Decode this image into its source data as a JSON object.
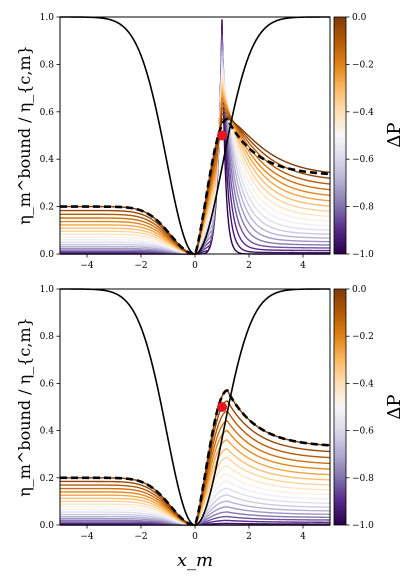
{
  "figure": {
    "ylabel": "η_m^bound / η_{c,m}",
    "xlabel": "x_m",
    "colorbar_label": "ΔP",
    "colorbar_ticks": [
      "0.0",
      "−0.2",
      "−0.4",
      "−0.6",
      "−0.8",
      "−1.0"
    ],
    "x_ticks": [
      "−4",
      "−2",
      "0",
      "2",
      "4"
    ],
    "y_ticks": [
      "0.0",
      "0.2",
      "0.4",
      "0.6",
      "0.8",
      "1.0"
    ]
  },
  "chart_data": [
    {
      "type": "line",
      "panel": "top",
      "xlim": [
        -5,
        5
      ],
      "ylim": [
        0,
        1
      ],
      "colormap": "PuOr (purple at ΔP = −1.0, orange at ΔP = 0.0)",
      "colorbar_range": [
        -1.0,
        0.0
      ],
      "black_solid_curve": {
        "x": [
          -5,
          -4,
          -3,
          -2,
          -1,
          -0.5,
          0,
          0.5,
          1,
          2,
          3,
          4,
          5
        ],
        "y": [
          0.96,
          0.93,
          0.87,
          0.73,
          0.45,
          0.2,
          0.0,
          0.2,
          0.5,
          0.8,
          0.91,
          0.94,
          0.96
        ]
      },
      "black_dashed_curve": {
        "x": [
          -5,
          -3,
          -1,
          0,
          0.5,
          1,
          1.2,
          2,
          3,
          4,
          5
        ],
        "y": [
          0.19,
          0.17,
          0.09,
          0.0,
          0.3,
          0.55,
          0.57,
          0.5,
          0.42,
          0.37,
          0.33
        ]
      },
      "red_marker": {
        "x": 1.0,
        "y": 0.5
      },
      "family_peak_max": 0.99,
      "family_peak_x": 1.0,
      "family_count": 20
    },
    {
      "type": "line",
      "panel": "bottom",
      "xlim": [
        -5,
        5
      ],
      "ylim": [
        0,
        1
      ],
      "colormap": "PuOr (purple at ΔP = −1.0, orange at ΔP = 0.0)",
      "colorbar_range": [
        -1.0,
        0.0
      ],
      "black_solid_curve": {
        "x": [
          -5,
          -4,
          -3,
          -2,
          -1,
          -0.5,
          0,
          0.5,
          1,
          2,
          3,
          4,
          5
        ],
        "y": [
          0.96,
          0.93,
          0.87,
          0.73,
          0.45,
          0.2,
          0.0,
          0.2,
          0.5,
          0.8,
          0.91,
          0.94,
          0.96
        ]
      },
      "black_dashed_curve": {
        "x": [
          -5,
          -3,
          -1,
          0,
          0.5,
          1,
          1.2,
          2,
          3,
          4,
          5
        ],
        "y": [
          0.19,
          0.17,
          0.09,
          0.0,
          0.3,
          0.55,
          0.57,
          0.5,
          0.42,
          0.37,
          0.33
        ]
      },
      "red_marker": {
        "x": 1.0,
        "y": 0.5
      },
      "family_peak_max": 0.57,
      "family_peak_x": 1.2,
      "family_count": 20
    }
  ]
}
